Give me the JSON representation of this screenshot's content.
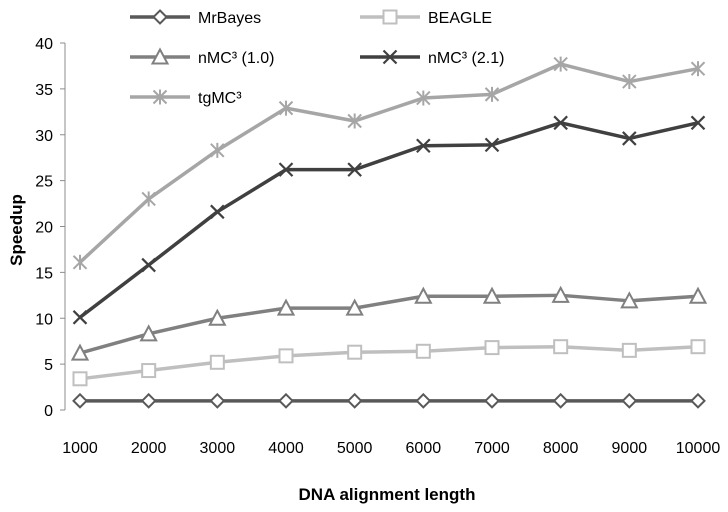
{
  "chart_data": {
    "type": "line",
    "title": "",
    "xlabel": "DNA alignment length",
    "ylabel": "Speedup",
    "x": [
      1000,
      2000,
      3000,
      4000,
      5000,
      6000,
      7000,
      8000,
      9000,
      10000
    ],
    "x_tick_labels": [
      "1000",
      "2000",
      "3000",
      "4000",
      "5000",
      "6000",
      "7000",
      "8000",
      "9000",
      "10000"
    ],
    "ylim": [
      0,
      40
    ],
    "y_ticks": [
      0,
      5,
      10,
      15,
      20,
      25,
      30,
      35,
      40
    ],
    "y_tick_labels": [
      "0",
      "5",
      "10",
      "15",
      "20",
      "25",
      "30",
      "35",
      "40"
    ],
    "grid": false,
    "legend_position": "top",
    "series": [
      {
        "name": "MrBayes",
        "marker": "diamond",
        "color": "#595959",
        "values": [
          1,
          1,
          1,
          1,
          1,
          1,
          1,
          1,
          1,
          1
        ]
      },
      {
        "name": "BEAGLE",
        "marker": "square",
        "color": "#bfbfbf",
        "values": [
          3.4,
          4.3,
          5.2,
          5.9,
          6.3,
          6.4,
          6.8,
          6.9,
          6.5,
          6.9
        ]
      },
      {
        "name": "nMC³ (1.0)",
        "marker": "triangle",
        "color": "#808080",
        "values": [
          6.2,
          8.3,
          10.0,
          11.1,
          11.1,
          12.4,
          12.4,
          12.5,
          11.9,
          12.4
        ]
      },
      {
        "name": "nMC³ (2.1)",
        "marker": "x",
        "color": "#404040",
        "values": [
          10.1,
          15.8,
          21.6,
          26.2,
          26.2,
          28.8,
          28.9,
          31.3,
          29.6,
          31.3
        ]
      },
      {
        "name": "tgMC³",
        "marker": "asterisk",
        "color": "#a6a6a6",
        "values": [
          16.1,
          23.0,
          28.3,
          32.9,
          31.5,
          34.0,
          34.4,
          37.7,
          35.8,
          37.2
        ]
      }
    ]
  }
}
